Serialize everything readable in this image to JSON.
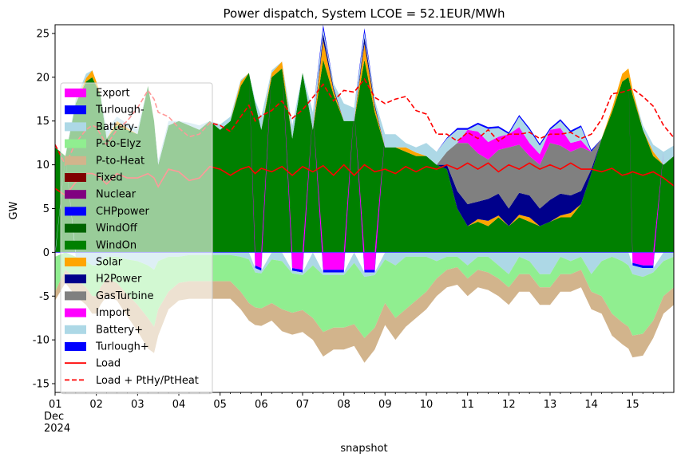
{
  "chart_data": {
    "type": "area",
    "title": "Power dispatch, System LCOE = 52.1EUR/MWh",
    "xlabel": "snapshot",
    "ylabel": "GW",
    "xlim": [
      1,
      16
    ],
    "ylim": [
      -16,
      26
    ],
    "yticks": [
      -15,
      -10,
      -5,
      0,
      5,
      10,
      15,
      20,
      25
    ],
    "xticks": [
      {
        "day": 1,
        "lines": [
          "01",
          "Dec",
          "2024"
        ]
      },
      {
        "day": 2,
        "lines": [
          "02"
        ]
      },
      {
        "day": 3,
        "lines": [
          "03"
        ]
      },
      {
        "day": 4,
        "lines": [
          "04"
        ]
      },
      {
        "day": 5,
        "lines": [
          "05"
        ]
      },
      {
        "day": 6,
        "lines": [
          "06"
        ]
      },
      {
        "day": 7,
        "lines": [
          "07"
        ]
      },
      {
        "day": 8,
        "lines": [
          "08"
        ]
      },
      {
        "day": 9,
        "lines": [
          "09"
        ]
      },
      {
        "day": 10,
        "lines": [
          "10"
        ]
      },
      {
        "day": 11,
        "lines": [
          "11"
        ]
      },
      {
        "day": 12,
        "lines": [
          "12"
        ]
      },
      {
        "day": 13,
        "lines": [
          "13"
        ]
      },
      {
        "day": 14,
        "lines": [
          "14"
        ]
      },
      {
        "day": 15,
        "lines": [
          "15"
        ]
      }
    ],
    "legend_position": "center-left",
    "legend": [
      {
        "label": "Export",
        "color": "#ff00ff",
        "kind": "patch"
      },
      {
        "label": "Turlough-",
        "color": "#0000ff",
        "kind": "patch"
      },
      {
        "label": "Battery-",
        "color": "#add8e6",
        "kind": "patch"
      },
      {
        "label": "P-to-Elyz",
        "color": "#90ee90",
        "kind": "patch"
      },
      {
        "label": "P-to-Heat",
        "color": "#d2b48c",
        "kind": "patch"
      },
      {
        "label": "Fixed",
        "color": "#800000",
        "kind": "patch"
      },
      {
        "label": "Nuclear",
        "color": "#800080",
        "kind": "patch"
      },
      {
        "label": "CHPpower",
        "color": "#0000ff",
        "kind": "patch"
      },
      {
        "label": "WindOff",
        "color": "#006400",
        "kind": "patch"
      },
      {
        "label": "WindOn",
        "color": "#008000",
        "kind": "patch"
      },
      {
        "label": "Solar",
        "color": "#ffa500",
        "kind": "patch"
      },
      {
        "label": "H2Power",
        "color": "#00008b",
        "kind": "patch"
      },
      {
        "label": "GasTurbine",
        "color": "#808080",
        "kind": "patch"
      },
      {
        "label": "Import",
        "color": "#ff00ff",
        "kind": "patch"
      },
      {
        "label": "Battery+",
        "color": "#add8e6",
        "kind": "patch"
      },
      {
        "label": "Turlough+",
        "color": "#0000ff",
        "kind": "patch"
      },
      {
        "label": "Load",
        "color": "#ff0000",
        "kind": "line"
      },
      {
        "label": "Load + PtHy/PtHeat",
        "color": "#ff0000",
        "kind": "dashed"
      }
    ],
    "x": [
      1.0,
      1.25,
      1.5,
      1.75,
      1.9,
      2.0,
      2.1,
      2.25,
      2.5,
      2.75,
      3.0,
      3.25,
      3.4,
      3.5,
      3.75,
      4.0,
      4.25,
      4.5,
      4.75,
      5.0,
      5.25,
      5.5,
      5.7,
      5.85,
      6.0,
      6.25,
      6.5,
      6.75,
      7.0,
      7.25,
      7.5,
      7.75,
      8.0,
      8.25,
      8.5,
      8.75,
      9.0,
      9.25,
      9.5,
      9.75,
      10.0,
      10.25,
      10.5,
      10.75,
      11.0,
      11.25,
      11.5,
      11.75,
      12.0,
      12.25,
      12.5,
      12.75,
      13.0,
      13.25,
      13.5,
      13.75,
      14.0,
      14.25,
      14.5,
      14.75,
      14.9,
      15.0,
      15.25,
      15.5,
      15.75,
      16.0
    ],
    "series": [
      {
        "name": "WindOn",
        "color": "#008000",
        "values": [
          12,
          11,
          17,
          19.5,
          20,
          19,
          18,
          13,
          14.5,
          14,
          13.5,
          19,
          15,
          10,
          14.5,
          15,
          14.5,
          14,
          15,
          14,
          15,
          19,
          20.5,
          17,
          14,
          20,
          21,
          13,
          20.5,
          14,
          22,
          18,
          15,
          15,
          22,
          16,
          12,
          12,
          11.5,
          11,
          11,
          10,
          9.5,
          5,
          3,
          3.5,
          3,
          4,
          3,
          4,
          3.5,
          3,
          3.5,
          4,
          4,
          5.5,
          9,
          13,
          16,
          19.5,
          20,
          18,
          14,
          11,
          10,
          11
        ]
      },
      {
        "name": "Solar",
        "color": "#ffa500",
        "values": [
          0,
          0,
          0,
          0.4,
          0.8,
          0.5,
          0,
          0,
          0.5,
          0.2,
          0,
          0,
          0,
          0,
          0,
          0,
          0,
          0,
          0,
          0,
          0,
          0.5,
          0,
          0,
          0,
          0.5,
          0.8,
          0,
          0,
          0,
          2.2,
          0.5,
          0,
          0,
          1.8,
          0.6,
          0,
          0,
          0.5,
          0.4,
          0,
          0,
          0,
          0,
          0,
          0.3,
          0.6,
          0.2,
          0,
          0.3,
          0.5,
          0,
          0,
          0.2,
          0.5,
          0,
          0,
          0,
          0.4,
          0.9,
          1,
          0.6,
          0,
          0.5,
          0,
          0
        ]
      },
      {
        "name": "H2Power",
        "color": "#00008b",
        "values": [
          0,
          0,
          0,
          0,
          0,
          0,
          0,
          0,
          0,
          0,
          0,
          0,
          0,
          0,
          0,
          0,
          0,
          0,
          0,
          0,
          0,
          0,
          0,
          0,
          0,
          0,
          0,
          0,
          0,
          0,
          0.8,
          0.3,
          0,
          0,
          0.8,
          0.3,
          0,
          0,
          0,
          0,
          0,
          0,
          0.5,
          2,
          2.5,
          2,
          2.5,
          2.5,
          2,
          2.5,
          2.5,
          2,
          2.5,
          2.5,
          2,
          1.5,
          0.5,
          0,
          0,
          0,
          0,
          0,
          0,
          0,
          0,
          0
        ]
      },
      {
        "name": "GasTurbine",
        "color": "#808080",
        "values": [
          0,
          0,
          0,
          0,
          0,
          0,
          0,
          0,
          0,
          0,
          0,
          0,
          0,
          0,
          0,
          0,
          0,
          0,
          0,
          0,
          0,
          0,
          0,
          0,
          0,
          0,
          0,
          0,
          0,
          0,
          0,
          0,
          0,
          0,
          0,
          0,
          0,
          0,
          0,
          0,
          0,
          0,
          1.5,
          5.5,
          7,
          5.5,
          4.5,
          5,
          7,
          5.5,
          4.5,
          5,
          6.5,
          5.5,
          5,
          5,
          2,
          0,
          0,
          0,
          0,
          0,
          0,
          0,
          0,
          0
        ]
      },
      {
        "name": "Import",
        "color": "#ff00ff",
        "values": [
          0,
          0,
          0,
          0,
          0,
          0,
          0,
          0,
          0,
          0,
          0,
          0,
          0,
          0,
          0,
          0,
          0,
          0,
          0,
          0,
          0,
          0,
          0,
          0,
          0,
          0,
          0,
          0,
          0,
          0,
          0,
          0,
          0,
          0,
          0,
          0,
          0,
          0,
          0,
          0,
          0,
          0,
          0,
          0,
          1.5,
          2.5,
          2,
          1.5,
          1.5,
          2,
          1.5,
          1.2,
          1.5,
          2,
          1,
          0.8,
          0,
          0,
          0,
          0,
          0,
          0,
          0,
          0,
          0,
          0
        ]
      },
      {
        "name": "Battery+",
        "color": "#add8e6",
        "values": [
          0,
          0,
          0.5,
          0.5,
          0,
          0,
          0,
          1,
          0.5,
          0.5,
          0.6,
          0,
          0,
          0.5,
          0.5,
          0,
          0.3,
          0.5,
          0,
          0.6,
          0.5,
          0.2,
          0,
          0.4,
          1.5,
          0.3,
          0,
          1.5,
          0,
          2,
          0.5,
          0.5,
          2,
          1.5,
          0.5,
          0.5,
          1.5,
          1.5,
          0.5,
          0.6,
          1.5,
          1.5,
          1.5,
          1.5,
          0,
          0.8,
          1.5,
          1,
          0,
          1.2,
          1.5,
          1,
          0,
          0.8,
          1.2,
          1.5,
          0,
          0,
          0,
          0,
          0,
          0,
          0.5,
          0.8,
          1.5,
          1.2
        ]
      },
      {
        "name": "Turlough+",
        "color": "#0000ff",
        "values": [
          0,
          0,
          0,
          0,
          0,
          0,
          0,
          0,
          0,
          0,
          0,
          0,
          0,
          0,
          0,
          0,
          0,
          0,
          0,
          0,
          0,
          0,
          0,
          0,
          0,
          0,
          0,
          0,
          0,
          0,
          0.5,
          0,
          0,
          0,
          0.5,
          0,
          0,
          0,
          0,
          0,
          0,
          0,
          0.1,
          0.2,
          0.2,
          0.2,
          0.2,
          0.2,
          0.2,
          0.2,
          0.2,
          0.2,
          0.2,
          0.2,
          0.2,
          0.2,
          0.2,
          0,
          0,
          0,
          0,
          0,
          0,
          0,
          0,
          0
        ]
      },
      {
        "name": "Export",
        "color": "#ff00ff",
        "values": [
          0,
          0,
          0,
          0,
          0,
          0,
          0,
          0,
          0,
          0,
          0,
          0,
          0,
          0,
          0,
          0,
          0,
          0,
          0,
          0,
          0,
          0,
          0,
          -1.5,
          -1.8,
          0,
          0,
          -1.8,
          -2,
          0,
          -2,
          -2,
          -2,
          0,
          -2,
          -2,
          0,
          0,
          0,
          0,
          0,
          0,
          0,
          0,
          0,
          0,
          0,
          0,
          0,
          0,
          0,
          0,
          0,
          0,
          0,
          0,
          0,
          0,
          0,
          0,
          0,
          -1.2,
          -1.5,
          -1.5,
          0,
          0
        ]
      },
      {
        "name": "Turlough-",
        "color": "#0000ff",
        "values": [
          0,
          0,
          0,
          0,
          0,
          0,
          0,
          0,
          0,
          0,
          0,
          0,
          0,
          0,
          0,
          0,
          0,
          0,
          0,
          0,
          0,
          0,
          0,
          -0.3,
          -0.3,
          0,
          0,
          -0.3,
          -0.3,
          0,
          -0.3,
          -0.3,
          -0.3,
          0,
          -0.3,
          -0.3,
          0,
          0,
          0,
          0,
          0,
          0,
          0,
          0,
          0,
          0,
          0,
          0,
          0,
          0,
          0,
          0,
          0,
          0,
          0,
          0,
          0,
          0,
          0,
          0,
          0,
          -0.3,
          -0.3,
          -0.3,
          0,
          0
        ]
      },
      {
        "name": "Battery-",
        "color": "#add8e6",
        "values": [
          -0.5,
          0,
          -0.5,
          -1,
          -1.5,
          -1.5,
          -1,
          -0.5,
          -0.5,
          -0.8,
          -1,
          -1.5,
          -2,
          -1,
          -0.5,
          -0.5,
          -0.3,
          -0.3,
          -0.3,
          -0.3,
          -0.3,
          -0.5,
          -0.8,
          -0.5,
          -0.3,
          -0.8,
          -1,
          -0.3,
          -0.3,
          -1.5,
          -0.3,
          -0.3,
          -0.3,
          -1.2,
          -0.5,
          -0.3,
          -0.8,
          -1.5,
          -0.5,
          -0.5,
          -0.5,
          -1,
          -0.5,
          -0.5,
          -1.5,
          -0.5,
          -0.5,
          -1.5,
          -2.5,
          -0.5,
          -1,
          -2.5,
          -2.5,
          -0.5,
          -1,
          -0.5,
          -2.5,
          -1,
          -0.5,
          -1,
          -1.5,
          -1,
          -1,
          -0.5,
          -1,
          -0.5
        ]
      },
      {
        "name": "P-to-Elyz",
        "color": "#90ee90",
        "values": [
          -4,
          -2,
          -2.5,
          -3,
          -3.5,
          -3.5,
          -3,
          -2.5,
          -3,
          -4,
          -5,
          -6,
          -6.5,
          -5.5,
          -4,
          -3,
          -3,
          -3,
          -3,
          -3,
          -3,
          -4,
          -5,
          -4,
          -4,
          -5,
          -5.5,
          -4.5,
          -4,
          -6,
          -6.5,
          -6,
          -6,
          -7,
          -7,
          -6,
          -5,
          -6,
          -6,
          -5,
          -4,
          -2,
          -1.5,
          -1.2,
          -1.5,
          -1.5,
          -1.8,
          -1.5,
          -1.5,
          -2,
          -1.5,
          -1.5,
          -1.5,
          -2,
          -1.5,
          -1.5,
          -2,
          -4,
          -6.5,
          -7,
          -7,
          -7,
          -6.5,
          -5.5,
          -4,
          -3.5
        ]
      },
      {
        "name": "P-to-Heat",
        "color": "#d2b48c",
        "values": [
          -1,
          -1.5,
          -2,
          -2,
          -2,
          -2,
          -2,
          -2,
          -2,
          -2.5,
          -3,
          -3.5,
          -3,
          -3,
          -2,
          -2,
          -2,
          -2,
          -2,
          -2,
          -2,
          -2,
          -2,
          -2,
          -2,
          -2,
          -2.5,
          -2.5,
          -2.5,
          -2.5,
          -2.8,
          -2.5,
          -2.5,
          -2.5,
          -2.8,
          -2.5,
          -2.5,
          -2.5,
          -2,
          -2,
          -2,
          -2,
          -2,
          -2,
          -2,
          -2,
          -2,
          -2,
          -2,
          -2,
          -2,
          -2,
          -2,
          -2,
          -2,
          -2,
          -2,
          -2,
          -2.5,
          -2.5,
          -2.5,
          -2.5,
          -2.5,
          -2,
          -2,
          -2
        ]
      }
    ],
    "load": [
      7.3,
      6.5,
      8,
      9,
      9,
      8.8,
      8.5,
      7.8,
      9,
      8.5,
      8.5,
      9,
      8.5,
      7.5,
      9.5,
      9.2,
      8.2,
      8.5,
      9.8,
      9.5,
      8.8,
      9.5,
      9.8,
      9,
      9.6,
      9.2,
      9.8,
      8.8,
      9.8,
      9.2,
      9.9,
      8.8,
      10,
      8.8,
      10,
      9.2,
      9.5,
      9,
      9.8,
      9.2,
      9.8,
      9.5,
      10,
      9.5,
      10.2,
      9.5,
      10.2,
      9.2,
      10,
      9.5,
      10.2,
      9.5,
      10,
      9.5,
      10.2,
      9.5,
      9.5,
      9.2,
      9.6,
      8.8,
      9,
      9.2,
      8.8,
      9.2,
      8.5,
      7.6
    ],
    "load_plus_ptx": [
      12.3,
      10,
      12.5,
      14,
      14.5,
      14.3,
      13.5,
      12.3,
      14,
      15,
      16.5,
      18.5,
      17.5,
      16,
      15.5,
      14.2,
      13.2,
      13.5,
      14.8,
      14.5,
      13.8,
      15.5,
      16.8,
      15,
      15.6,
      16.2,
      17.3,
      15.3,
      16.3,
      17.7,
      19.2,
      17.3,
      18.5,
      18.3,
      19.8,
      17.7,
      17,
      17.5,
      17.8,
      16.2,
      15.8,
      13.5,
      13.5,
      12.7,
      13.7,
      13,
      14,
      12.7,
      13.5,
      13.5,
      13.7,
      13,
      13.5,
      13.5,
      13.7,
      13,
      13.5,
      15.2,
      18.1,
      18.3,
      18.5,
      18.7,
      17.8,
      16.7,
      14.5,
      13.1
    ]
  }
}
